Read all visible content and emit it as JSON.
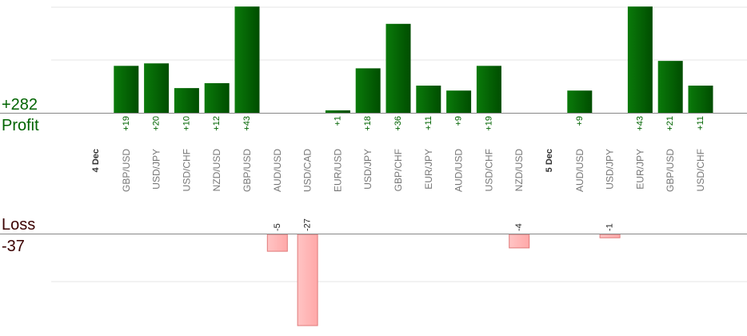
{
  "summary": {
    "profit_total": "+282",
    "profit_label": "Profit",
    "loss_label": "Loss",
    "loss_total": "-37"
  },
  "colors": {
    "profit_bar_dark": "#004d00",
    "profit_bar_light": "#0a7a0a",
    "profit_text": "#006400",
    "loss_bar": "#ffb3b3",
    "loss_bar_border": "#e07a7a",
    "loss_text": "#3b0000",
    "axis": "#888888",
    "grid": "#e6e6e6",
    "label": "#777777",
    "date_label": "#333333"
  },
  "chart_data": {
    "type": "bar",
    "profit_axis_max": 45,
    "loss_axis_max": 27,
    "columns": [
      {
        "kind": "date",
        "label": "4 Dec"
      },
      {
        "kind": "trade",
        "pair": "GBP/USD",
        "value": 19,
        "label": "+19"
      },
      {
        "kind": "trade",
        "pair": "USD/JPY",
        "value": 20,
        "label": "+20"
      },
      {
        "kind": "trade",
        "pair": "USD/CHF",
        "value": 10,
        "label": "+10"
      },
      {
        "kind": "trade",
        "pair": "NZD/USD",
        "value": 12,
        "label": "+12"
      },
      {
        "kind": "trade",
        "pair": "GBP/USD",
        "value": 43,
        "label": "+43"
      },
      {
        "kind": "trade",
        "pair": "AUD/USD",
        "value": -5,
        "label": "-5"
      },
      {
        "kind": "trade",
        "pair": "USD/CAD",
        "value": -27,
        "label": "-27"
      },
      {
        "kind": "trade",
        "pair": "EUR/USD",
        "value": 1,
        "label": "+1"
      },
      {
        "kind": "trade",
        "pair": "USD/JPY",
        "value": 18,
        "label": "+18"
      },
      {
        "kind": "trade",
        "pair": "GBP/CHF",
        "value": 36,
        "label": "+36"
      },
      {
        "kind": "trade",
        "pair": "EUR/JPY",
        "value": 11,
        "label": "+11"
      },
      {
        "kind": "trade",
        "pair": "AUD/USD",
        "value": 9,
        "label": "+9"
      },
      {
        "kind": "trade",
        "pair": "USD/CHF",
        "value": 19,
        "label": "+19"
      },
      {
        "kind": "trade",
        "pair": "NZD/USD",
        "value": -4,
        "label": "-4"
      },
      {
        "kind": "date",
        "label": "5 Dec"
      },
      {
        "kind": "trade",
        "pair": "AUD/USD",
        "value": 9,
        "label": "+9"
      },
      {
        "kind": "trade",
        "pair": "USD/JPY",
        "value": -1,
        "label": "-1"
      },
      {
        "kind": "trade",
        "pair": "EUR/JPY",
        "value": 43,
        "label": "+43"
      },
      {
        "kind": "trade",
        "pair": "GBP/USD",
        "value": 21,
        "label": "+21"
      },
      {
        "kind": "trade",
        "pair": "USD/CHF",
        "value": 11,
        "label": "+11"
      }
    ]
  }
}
